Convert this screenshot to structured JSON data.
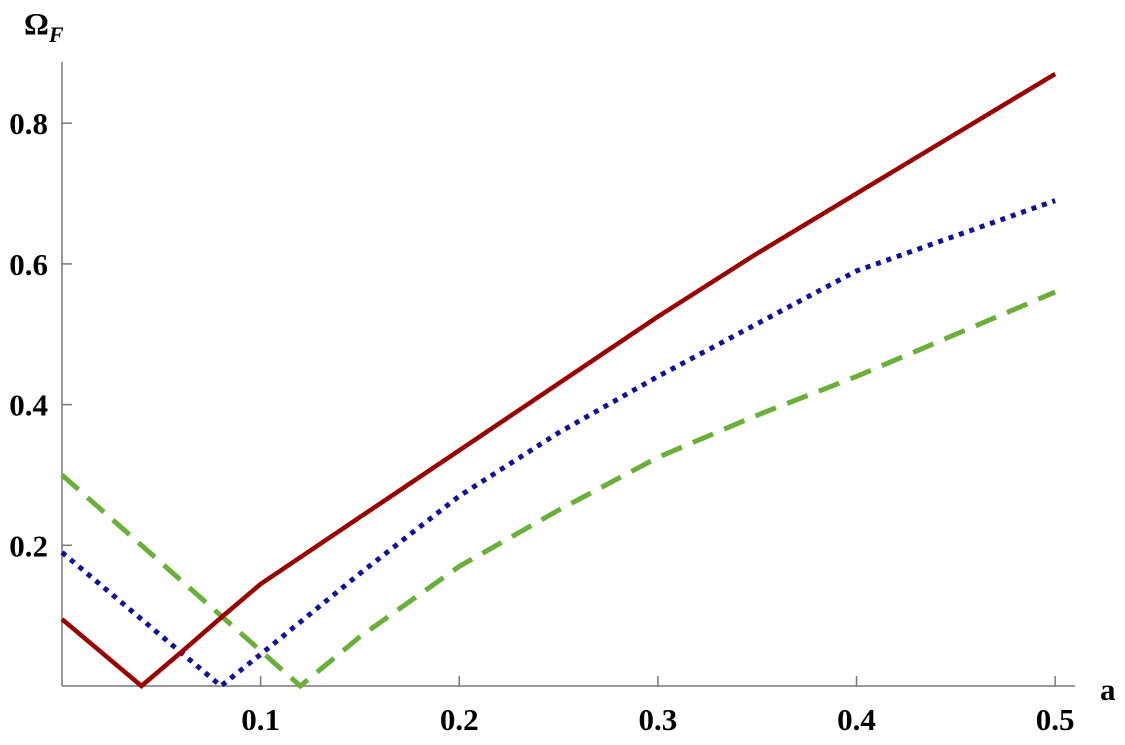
{
  "chart_data": {
    "type": "line",
    "x_label": "a",
    "y_label": {
      "symbol": "Ω",
      "subscript": "F"
    },
    "xlim": [
      0,
      0.51
    ],
    "ylim": [
      0,
      0.887
    ],
    "xticks": [
      0.1,
      0.2,
      0.3,
      0.4,
      0.5
    ],
    "yticks": [
      0.2,
      0.4,
      0.6,
      0.8
    ],
    "series": [
      {
        "color": "#990000",
        "linestyle": "solid",
        "x": [
          0,
          0.04,
          0.06,
          0.08,
          0.1,
          0.15,
          0.2,
          0.25,
          0.3,
          0.35,
          0.4,
          0.45,
          0.5
        ],
        "values": [
          0.095,
          0,
          0.048,
          0.097,
          0.145,
          0.24,
          0.335,
          0.43,
          0.525,
          0.615,
          0.7,
          0.785,
          0.87
        ]
      },
      {
        "color": "#10109a",
        "linestyle": "dotted",
        "x": [
          0,
          0.04,
          0.08,
          0.1,
          0.15,
          0.2,
          0.25,
          0.3,
          0.35,
          0.4,
          0.45,
          0.5
        ],
        "values": [
          0.19,
          0.095,
          0,
          0.045,
          0.16,
          0.27,
          0.36,
          0.44,
          0.515,
          0.59,
          0.64,
          0.69
        ]
      },
      {
        "color": "#6aaf3a",
        "linestyle": "dashed",
        "x": [
          0,
          0.04,
          0.08,
          0.12,
          0.15,
          0.2,
          0.25,
          0.3,
          0.35,
          0.4,
          0.45,
          0.5
        ],
        "values": [
          0.3,
          0.2,
          0.1,
          0,
          0.07,
          0.17,
          0.25,
          0.325,
          0.385,
          0.44,
          0.5,
          0.56
        ]
      }
    ]
  }
}
